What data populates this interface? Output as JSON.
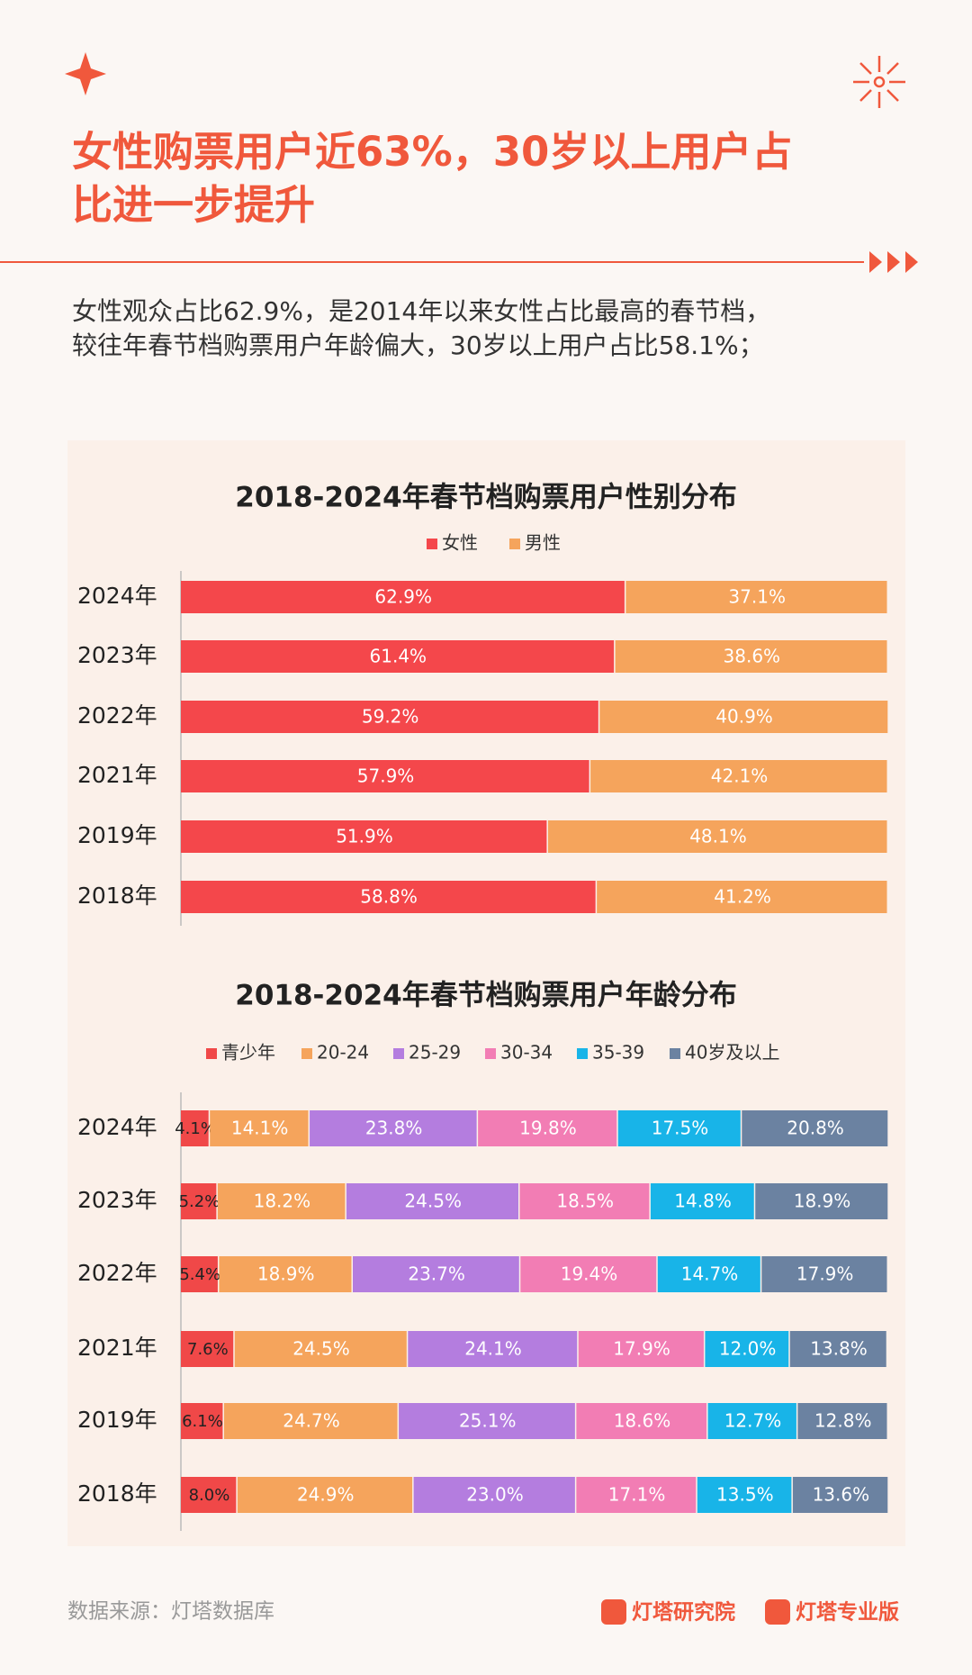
{
  "header": {
    "title_lines": [
      "女性购票用户近63%，30岁以上用户占",
      "比进一步提升"
    ],
    "subtitle_lines": [
      "女性观众占比62.9%，是2014年以来女性占比最高的春节档，",
      "较往年春节档购票用户年龄偏大，30岁以上用户占比58.1%；"
    ]
  },
  "chart_data": [
    {
      "type": "bar",
      "orientation": "horizontal",
      "stacked": true,
      "title": "2018-2024年春节档购票用户性别分布",
      "categories": [
        "2024年",
        "2023年",
        "2022年",
        "2021年",
        "2019年",
        "2018年"
      ],
      "xlim": [
        0,
        100
      ],
      "series": [
        {
          "name": "女性",
          "color": "#f4474b",
          "values": [
            62.9,
            61.4,
            59.2,
            57.9,
            51.9,
            58.8
          ],
          "value_labels": [
            "62.9%",
            "61.4%",
            "59.2%",
            "57.9%",
            "51.9%",
            "58.8%"
          ]
        },
        {
          "name": "男性",
          "color": "#f5a45c",
          "values": [
            37.1,
            38.6,
            40.9,
            42.1,
            48.1,
            41.2
          ],
          "value_labels": [
            "37.1%",
            "38.6%",
            "40.9%",
            "42.1%",
            "48.1%",
            "41.2%"
          ]
        }
      ]
    },
    {
      "type": "bar",
      "orientation": "horizontal",
      "stacked": true,
      "title": "2018-2024年春节档购票用户年龄分布",
      "categories": [
        "2024年",
        "2023年",
        "2022年",
        "2021年",
        "2019年",
        "2018年"
      ],
      "xlim": [
        0,
        100
      ],
      "series": [
        {
          "name": "青少年",
          "color": "#f04848",
          "values": [
            4.1,
            5.2,
            5.4,
            7.6,
            6.1,
            8.0
          ],
          "value_labels": [
            "4.1%",
            "5.2%",
            "5.4%",
            "7.6%",
            "6.1%",
            "8.0%"
          ]
        },
        {
          "name": "20-24",
          "color": "#f5a45c",
          "values": [
            14.1,
            18.2,
            18.9,
            24.5,
            24.7,
            24.9
          ],
          "value_labels": [
            "14.1%",
            "18.2%",
            "18.9%",
            "24.5%",
            "24.7%",
            "24.9%"
          ]
        },
        {
          "name": "25-29",
          "color": "#b47ddf",
          "values": [
            23.8,
            24.5,
            23.7,
            24.1,
            25.1,
            23.0
          ],
          "value_labels": [
            "23.8%",
            "24.5%",
            "23.7%",
            "24.1%",
            "25.1%",
            "23.0%"
          ]
        },
        {
          "name": "30-34",
          "color": "#f27db4",
          "values": [
            19.8,
            18.5,
            19.4,
            17.9,
            18.6,
            17.1
          ],
          "value_labels": [
            "19.8%",
            "18.5%",
            "19.4%",
            "17.9%",
            "18.6%",
            "17.1%"
          ]
        },
        {
          "name": "35-39",
          "color": "#18b4e8",
          "values": [
            17.5,
            14.8,
            14.7,
            12.0,
            12.7,
            13.5
          ],
          "value_labels": [
            "17.5%",
            "14.8%",
            "14.7%",
            "12.0%",
            "12.7%",
            "13.5%"
          ]
        },
        {
          "name": "40岁及以上",
          "color": "#6b82a1",
          "values": [
            20.8,
            18.9,
            17.9,
            13.8,
            12.8,
            13.6
          ],
          "value_labels": [
            "20.8%",
            "18.9%",
            "17.9%",
            "13.8%",
            "12.8%",
            "13.6%"
          ]
        }
      ]
    }
  ],
  "footer": {
    "source": "数据来源：灯塔数据库",
    "logos": [
      "灯塔研究院",
      "灯塔专业版"
    ]
  }
}
